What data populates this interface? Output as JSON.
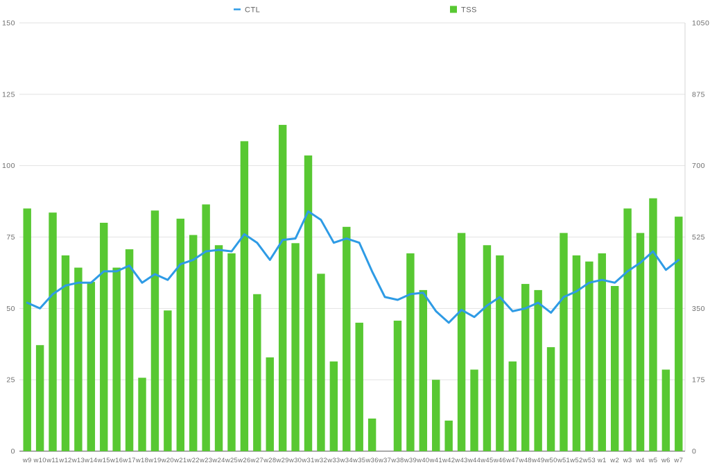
{
  "legend": {
    "ctl_label": "CTL",
    "tss_label": "TSS"
  },
  "colors": {
    "bar": "#58c832",
    "line": "#2e9be5",
    "grid": "#e2e2e2",
    "baseline": "#a9a9a9",
    "right_border": "#d6d6d6",
    "axis_text": "#6e6e6e"
  },
  "chart_data": {
    "type": "bar",
    "title": "",
    "xlabel": "",
    "ylabel": "",
    "grid": true,
    "legend_position": "top",
    "categories": [
      "w9",
      "w10",
      "w11",
      "w12",
      "w13",
      "w14",
      "w15",
      "w16",
      "w17",
      "w18",
      "w19",
      "w20",
      "w21",
      "w22",
      "w23",
      "w24",
      "w25",
      "w26",
      "w27",
      "w28",
      "w29",
      "w30",
      "w31",
      "w32",
      "w33",
      "w34",
      "w35",
      "w36",
      "w37",
      "w38",
      "w39",
      "w40",
      "w41",
      "w42",
      "w43",
      "w44",
      "w45",
      "w46",
      "w47",
      "w48",
      "w49",
      "w50",
      "w51",
      "w52",
      "w53",
      "w1",
      "w2",
      "w3",
      "w4",
      "w5",
      "w6",
      "w7"
    ],
    "left_axis": {
      "label": "CTL",
      "min": 0,
      "max": 150,
      "ticks": [
        0,
        25,
        50,
        75,
        100,
        125,
        150
      ]
    },
    "right_axis": {
      "label": "TSS",
      "min": 0,
      "max": 1050,
      "ticks": [
        0,
        175,
        350,
        525,
        700,
        875,
        1050
      ]
    },
    "series": [
      {
        "name": "TSS",
        "type": "bar",
        "axis": "right",
        "color": "#58c832",
        "values": [
          595,
          260,
          585,
          480,
          450,
          415,
          560,
          450,
          495,
          180,
          590,
          345,
          570,
          530,
          605,
          505,
          485,
          760,
          385,
          230,
          800,
          510,
          725,
          435,
          220,
          550,
          315,
          80,
          0,
          320,
          485,
          395,
          175,
          75,
          535,
          200,
          505,
          480,
          220,
          410,
          395,
          255,
          535,
          480,
          465,
          485,
          405,
          595,
          535,
          620,
          200,
          575
        ]
      },
      {
        "name": "CTL",
        "type": "line",
        "axis": "left",
        "color": "#2e9be5",
        "values": [
          52,
          50,
          55,
          58,
          59,
          59,
          63,
          63,
          65,
          59,
          62,
          60,
          65.5,
          67,
          70,
          70.5,
          70,
          76,
          73,
          67,
          74,
          74.5,
          84,
          81,
          73,
          74.5,
          73,
          63,
          54,
          53,
          55,
          55.5,
          49,
          45,
          49.5,
          47,
          51,
          54,
          49,
          50,
          52,
          48.5,
          54,
          56,
          59,
          60,
          59,
          63,
          66,
          70,
          63.5,
          67
        ]
      }
    ]
  }
}
